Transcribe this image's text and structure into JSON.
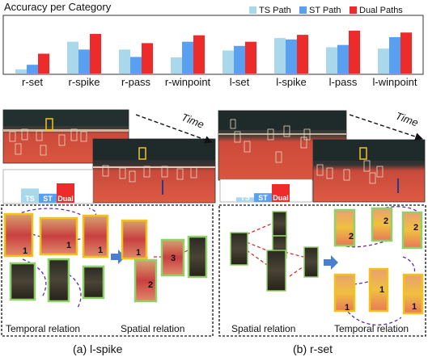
{
  "colors": {
    "ts": "#a9d8ea",
    "st": "#5aa0f0",
    "dual": "#ee2b2b",
    "frame_yellow": "#f2c21b",
    "frame_green": "#8fd06a",
    "relation_purple": "#5a2ab0",
    "relation_red": "#e02020",
    "arrow_blue": "#4a7fd0"
  },
  "chart_data": {
    "type": "bar",
    "title": "Accuracy per Category",
    "categories": [
      "r-set",
      "r-spike",
      "r-pass",
      "r-winpoint",
      "l-set",
      "l-spike",
      "l-pass",
      "l-winpoint"
    ],
    "series": [
      {
        "name": "TS Path",
        "values": [
          0.09,
          0.69,
          0.52,
          0.35,
          0.5,
          0.77,
          0.57,
          0.54
        ]
      },
      {
        "name": "ST Path",
        "values": [
          0.19,
          0.52,
          0.36,
          0.69,
          0.6,
          0.74,
          0.62,
          0.79
        ]
      },
      {
        "name": "Dual Paths",
        "values": [
          0.43,
          0.86,
          0.66,
          0.83,
          0.69,
          0.84,
          0.93,
          0.89
        ]
      }
    ],
    "legend": "top-right",
    "ylim": [
      0,
      1
    ],
    "grid": false
  },
  "panels": {
    "left": {
      "time_label": "Time",
      "bars": [
        {
          "label": "TS",
          "value": 0.55
        },
        {
          "label": "ST",
          "value": 0.35
        },
        {
          "label": "Dual",
          "value": 0.75
        }
      ]
    },
    "right": {
      "time_label": "Time",
      "bars": [
        {
          "label": "TS",
          "value": 0.14
        },
        {
          "label": "ST",
          "value": 0.27
        },
        {
          "label": "Dual",
          "value": 0.55
        }
      ]
    }
  },
  "relations": {
    "a": {
      "temporal_label": "Temporal relation",
      "spatial_label": "Spatial relation",
      "caption": "(a) l-spike",
      "numbers": [
        "1",
        "1",
        "1",
        "1",
        "2",
        "3"
      ]
    },
    "b": {
      "spatial_label": "Spatial relation",
      "temporal_label": "Temporal relation",
      "caption": "(b) r-set",
      "numbers": [
        "2",
        "2",
        "2",
        "1",
        "1",
        "1"
      ]
    }
  }
}
